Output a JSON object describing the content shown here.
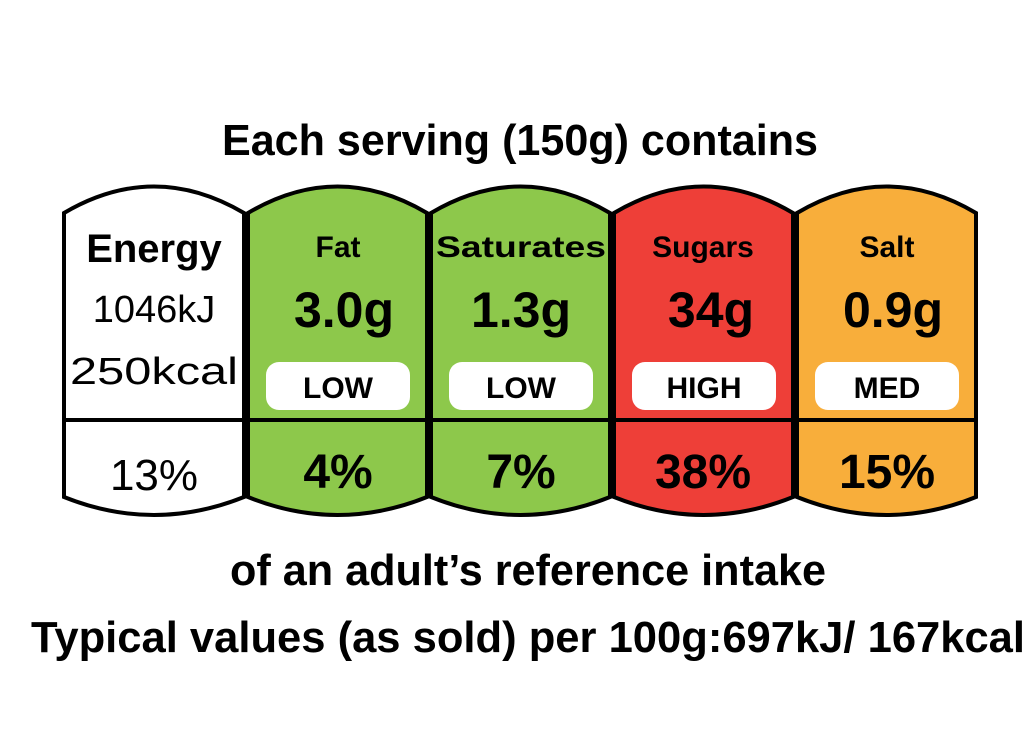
{
  "header": {
    "title": "Each serving (150g) contains"
  },
  "energy": {
    "label": "Energy",
    "kj": "1046kJ",
    "kcal": "250kcal",
    "percent": "13%",
    "color": "#ffffff"
  },
  "nutrients": [
    {
      "label": "Fat",
      "value": "3.0g",
      "level": "LOW",
      "percent": "4%",
      "color": "#8dc84b"
    },
    {
      "label": "Saturates",
      "value": "1.3g",
      "level": "LOW",
      "percent": "7%",
      "color": "#8dc84b"
    },
    {
      "label": "Sugars",
      "value": "34g",
      "level": "HIGH",
      "percent": "38%",
      "color": "#ee3f38"
    },
    {
      "label": "Salt",
      "value": "0.9g",
      "level": "MED",
      "percent": "15%",
      "color": "#f8ae3b"
    }
  ],
  "footer": {
    "reference": "of an adult’s reference intake",
    "typical": "Typical values (as sold) per 100g:697kJ/ 167kcal"
  }
}
